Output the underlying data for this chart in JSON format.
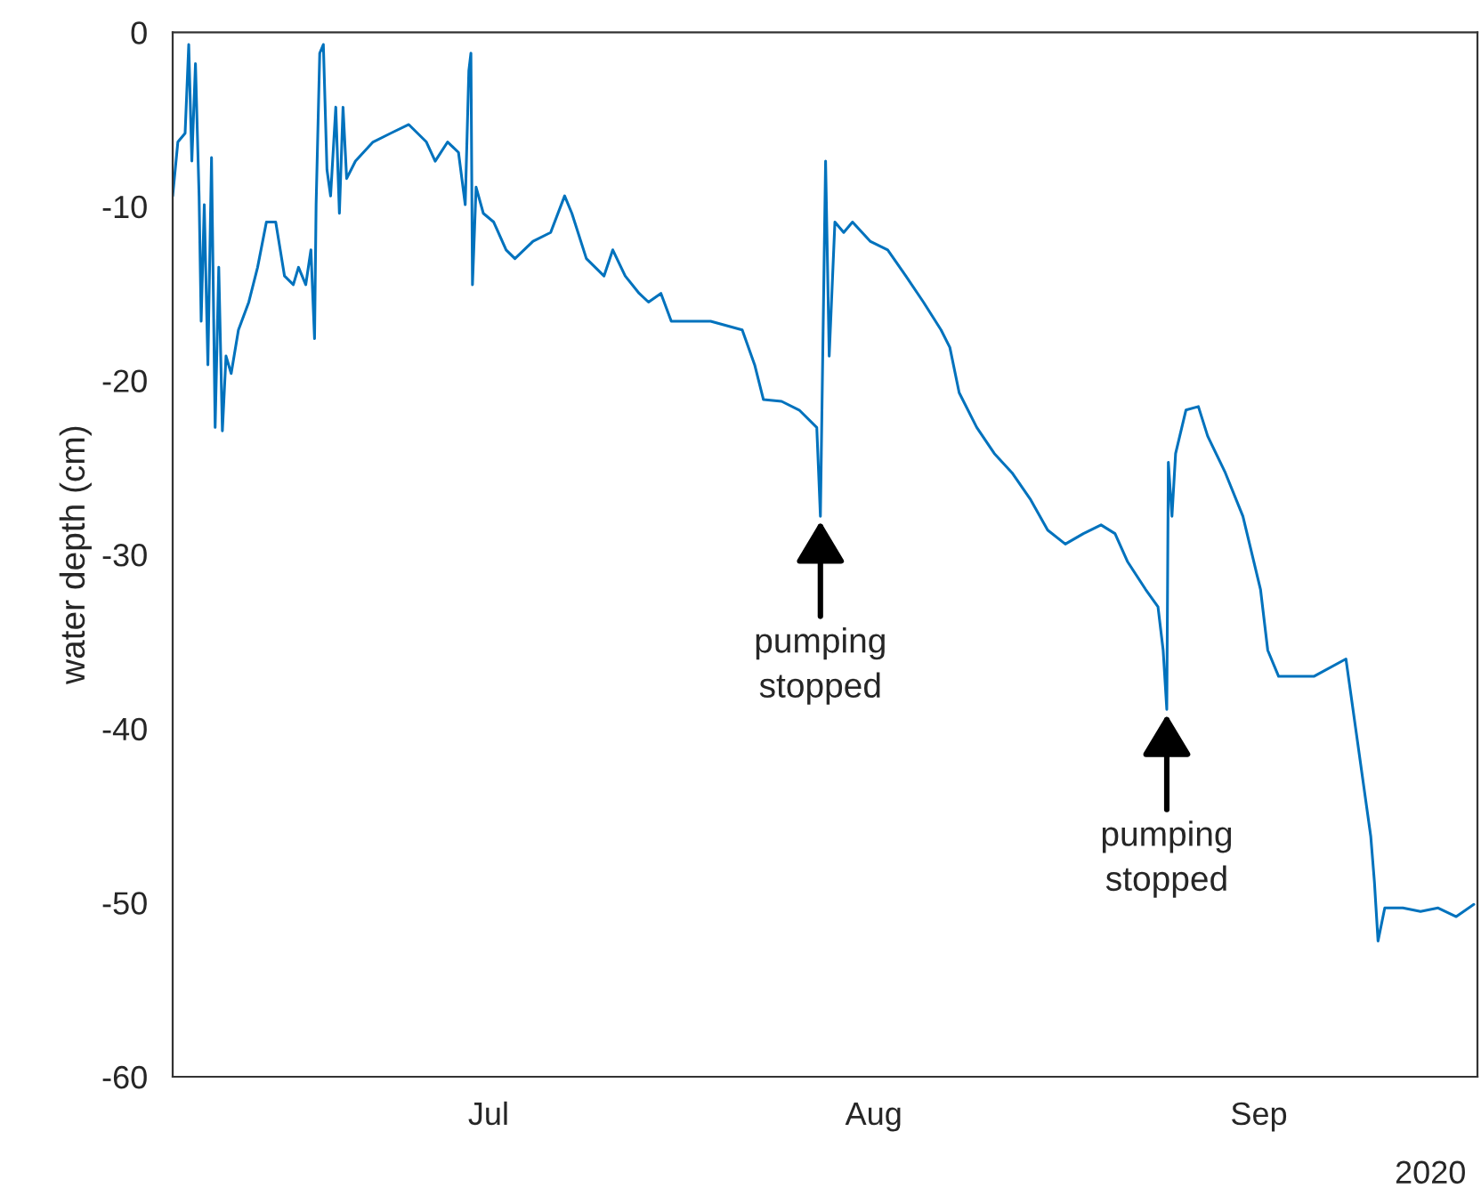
{
  "chart_data": {
    "type": "line",
    "ylabel": "water depth (cm)",
    "x": [
      "2020-06-05T14:00",
      "2020-06-06T00:00",
      "2020-06-06T14:00",
      "2020-06-06T21:00",
      "2020-06-07T03:00",
      "2020-06-07T10:00",
      "2020-06-07T17:00",
      "2020-06-07T21:00",
      "2020-06-08T03:00",
      "2020-06-08T10:00",
      "2020-06-08T17:00",
      "2020-06-09T00:00",
      "2020-06-09T07:00",
      "2020-06-09T14:00",
      "2020-06-09T21:00",
      "2020-06-10T07:00",
      "2020-06-10T21:00",
      "2020-06-11T17:00",
      "2020-06-12T10:00",
      "2020-06-13T03:00",
      "2020-06-13T21:00",
      "2020-06-14T14:00",
      "2020-06-15T07:00",
      "2020-06-15T17:00",
      "2020-06-16T07:00",
      "2020-06-16T17:00",
      "2020-06-17T00:00",
      "2020-06-17T03:00",
      "2020-06-17T10:00",
      "2020-06-17T17:00",
      "2020-06-18T00:00",
      "2020-06-18T07:00",
      "2020-06-18T17:00",
      "2020-06-19T00:00",
      "2020-06-19T07:00",
      "2020-06-19T14:00",
      "2020-06-20T07:00",
      "2020-06-21T17:00",
      "2020-06-23T03:00",
      "2020-06-24T14:00",
      "2020-06-26T00:00",
      "2020-06-26T17:00",
      "2020-06-27T17:00",
      "2020-06-28T14:00",
      "2020-06-29T03:00",
      "2020-06-29T10:00",
      "2020-06-29T14:00",
      "2020-06-29T17:00",
      "2020-06-30T00:00",
      "2020-06-30T14:00",
      "2020-07-01T10:00",
      "2020-07-02T10:00",
      "2020-07-03T03:00",
      "2020-07-04T14:00",
      "2020-07-06T00:00",
      "2020-07-07T03:00",
      "2020-07-07T17:00",
      "2020-07-08T21:00",
      "2020-07-10T07:00",
      "2020-07-11T00:00",
      "2020-07-12T00:00",
      "2020-07-13T03:00",
      "2020-07-13T21:00",
      "2020-07-14T21:00",
      "2020-07-15T17:00",
      "2020-07-16T17:00",
      "2020-07-18T21:00",
      "2020-07-21T10:00",
      "2020-07-22T10:00",
      "2020-07-23T03:00",
      "2020-07-24T14:00",
      "2020-07-26T00:00",
      "2020-07-27T10:00",
      "2020-07-27T17:00",
      "2020-07-28T00:00",
      "2020-07-28T03:00",
      "2020-07-28T10:00",
      "2020-07-28T21:00",
      "2020-07-29T14:00",
      "2020-07-30T07:00",
      "2020-07-31T17:00",
      "2020-08-02T03:00",
      "2020-08-03T14:00",
      "2020-08-05T00:00",
      "2020-08-06T10:00",
      "2020-08-07T03:00",
      "2020-08-07T21:00",
      "2020-08-09T07:00",
      "2020-08-10T17:00",
      "2020-08-12T03:00",
      "2020-08-13T14:00",
      "2020-08-15T00:00",
      "2020-08-16T10:00",
      "2020-08-17T21:00",
      "2020-08-19T07:00",
      "2020-08-20T10:00",
      "2020-08-21T10:00",
      "2020-08-22T21:00",
      "2020-08-23T21:00",
      "2020-08-24T07:00",
      "2020-08-24T14:00",
      "2020-08-24T17:00",
      "2020-08-25T00:00",
      "2020-08-25T07:00",
      "2020-08-26T03:00",
      "2020-08-27T03:00",
      "2020-08-27T21:00",
      "2020-08-29T07:00",
      "2020-08-30T17:00",
      "2020-09-01T03:00",
      "2020-09-01T17:00",
      "2020-09-02T14:00",
      "2020-09-05T10:00",
      "2020-09-08T00:00",
      "2020-09-09T00:00",
      "2020-09-10T00:00",
      "2020-09-10T07:00",
      "2020-09-10T14:00",
      "2020-09-11T03:00",
      "2020-09-12T14:00",
      "2020-09-14T00:00",
      "2020-09-15T10:00",
      "2020-09-16T21:00",
      "2020-09-18T07:00"
    ],
    "series": [
      {
        "color": "#0072bd",
        "values": [
          -9.4,
          -6.3,
          -5.8,
          -0.7,
          -7.4,
          -1.8,
          -9.4,
          -16.6,
          -9.9,
          -19.1,
          -7.2,
          -22.7,
          -13.5,
          -22.9,
          -18.6,
          -19.6,
          -17.1,
          -15.5,
          -13.5,
          -10.9,
          -10.9,
          -14.0,
          -14.5,
          -13.5,
          -14.5,
          -12.5,
          -17.6,
          -9.9,
          -1.2,
          -0.7,
          -7.9,
          -9.4,
          -4.3,
          -10.4,
          -4.3,
          -8.4,
          -7.4,
          -6.3,
          -5.8,
          -5.3,
          -6.3,
          -7.4,
          -6.3,
          -6.9,
          -9.9,
          -2.2,
          -1.2,
          -14.5,
          -8.9,
          -10.4,
          -10.9,
          -12.5,
          -13.0,
          -12.0,
          -11.5,
          -9.4,
          -10.4,
          -13.0,
          -14.0,
          -12.5,
          -14.0,
          -15.0,
          -15.5,
          -15.0,
          -16.6,
          -16.6,
          -16.6,
          -17.1,
          -19.1,
          -21.1,
          -21.2,
          -21.7,
          -22.7,
          -27.8,
          -13.5,
          -7.4,
          -18.6,
          -10.9,
          -11.5,
          -10.9,
          -12.0,
          -12.5,
          -14.0,
          -15.5,
          -17.1,
          -18.1,
          -20.7,
          -22.7,
          -24.2,
          -25.3,
          -26.8,
          -28.6,
          -29.4,
          -28.8,
          -28.3,
          -28.8,
          -30.4,
          -32.0,
          -33.0,
          -35.5,
          -38.9,
          -24.7,
          -27.8,
          -24.2,
          -21.7,
          -21.5,
          -23.2,
          -25.3,
          -27.8,
          -32.0,
          -35.5,
          -37.0,
          -37.0,
          -36.0,
          -41.1,
          -46.2,
          -48.8,
          -52.2,
          -50.3,
          -50.3,
          -50.5,
          -50.3,
          -50.8,
          -50.1
        ]
      }
    ],
    "xlim": [
      "2020-06-05T14:00",
      "2020-09-18T14:00"
    ],
    "xticks": [
      {
        "value": "2020-07-01",
        "label": "Jul"
      },
      {
        "value": "2020-08-01",
        "label": "Aug"
      },
      {
        "value": "2020-09-01",
        "label": "Sep"
      }
    ],
    "ylim": [
      -60,
      0
    ],
    "yticks": [
      -60,
      -50,
      -40,
      -30,
      -20,
      -10,
      0
    ],
    "grid": false,
    "marker": "none",
    "line_style": "solid",
    "annotations": [
      {
        "text": "pumping\nstopped",
        "x": "2020-07-27T17:00",
        "y": -27.8
      },
      {
        "text": "pumping\nstopped",
        "x": "2020-08-24T14:00",
        "y": -38.9
      },
      "2020"
    ]
  }
}
